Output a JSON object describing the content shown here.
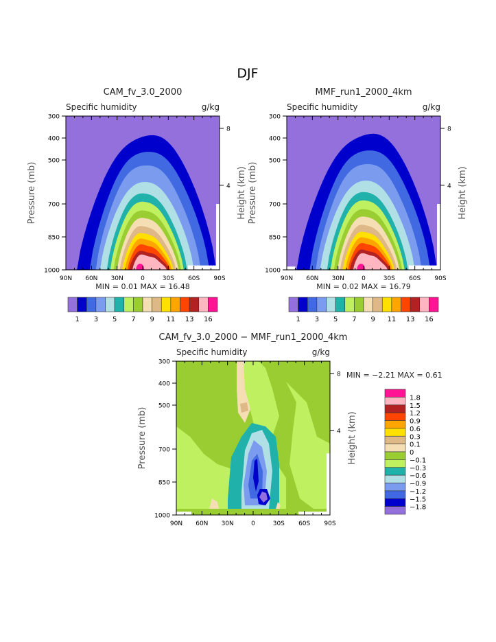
{
  "page_title": "DJF",
  "chart_data": [
    {
      "type": "heatmap",
      "subtype": "filled-contour",
      "title": "CAM_fv_3.0_2000",
      "left_label": "Specific humidity",
      "right_label": "g/kg",
      "xlabel": "",
      "ylabel": "Pressure (mb)",
      "ylabel_right": "Height (km)",
      "xticks": [
        "90N",
        "60N",
        "30N",
        "0",
        "30S",
        "60S",
        "90S"
      ],
      "yticks": [
        "300",
        "400",
        "500",
        "700",
        "850",
        "1000"
      ],
      "yticks_right": [
        "8",
        "4"
      ],
      "ylim": [
        1000,
        300
      ],
      "min_label": "MIN =",
      "min_value": "0.01",
      "max_label": "MAX =",
      "max_value": "16.48",
      "colorbar_labels": [
        "1",
        "3",
        "5",
        "7",
        "9",
        "11",
        "13",
        "16"
      ]
    },
    {
      "type": "heatmap",
      "subtype": "filled-contour",
      "title": "MMF_run1_2000_4km",
      "left_label": "Specific humidity",
      "right_label": "g/kg",
      "xlabel": "",
      "ylabel": "Pressure (mb)",
      "ylabel_right": "Height (km)",
      "xticks": [
        "90N",
        "60N",
        "30N",
        "0",
        "30S",
        "60S",
        "90S"
      ],
      "yticks": [
        "300",
        "400",
        "500",
        "700",
        "850",
        "1000"
      ],
      "yticks_right": [
        "8",
        "4"
      ],
      "ylim": [
        1000,
        300
      ],
      "min_label": "MIN =",
      "min_value": "0.02",
      "max_label": "MAX =",
      "max_value": "16.79",
      "colorbar_labels": [
        "1",
        "3",
        "5",
        "7",
        "9",
        "11",
        "13",
        "16"
      ]
    },
    {
      "type": "heatmap",
      "subtype": "filled-contour",
      "title": "CAM_fv_3.0_2000 − MMF_run1_2000_4km",
      "left_label": "Specific humidity",
      "right_label": "g/kg",
      "xlabel": "",
      "ylabel": "Pressure (mb)",
      "ylabel_right": "Height (km)",
      "xticks": [
        "90N",
        "60N",
        "30N",
        "0",
        "30S",
        "60S",
        "90S"
      ],
      "yticks": [
        "300",
        "400",
        "500",
        "700",
        "850",
        "1000"
      ],
      "yticks_right": [
        "8",
        "4"
      ],
      "ylim": [
        1000,
        300
      ],
      "min_label": "MIN =",
      "min_value": "−2.21",
      "max_label": "MAX =",
      "max_value": "0.61",
      "colorbar_labels": [
        "1.8",
        "1.5",
        "1.2",
        "0.9",
        "0.6",
        "0.3",
        "0.1",
        "0",
        "−0.1",
        "−0.3",
        "−0.6",
        "−0.9",
        "−1.2",
        "−1.5",
        "−1.8"
      ]
    }
  ],
  "colors": [
    "#9370DB",
    "#0000CD",
    "#4169E1",
    "#7B9CEE",
    "#B0E0E6",
    "#20B2AA",
    "#BFF060",
    "#9ACD32",
    "#F5DEB3",
    "#DEB887",
    "#FFE000",
    "#FFA500",
    "#FF4500",
    "#B22222",
    "#FFB6C1",
    "#FF1493"
  ]
}
